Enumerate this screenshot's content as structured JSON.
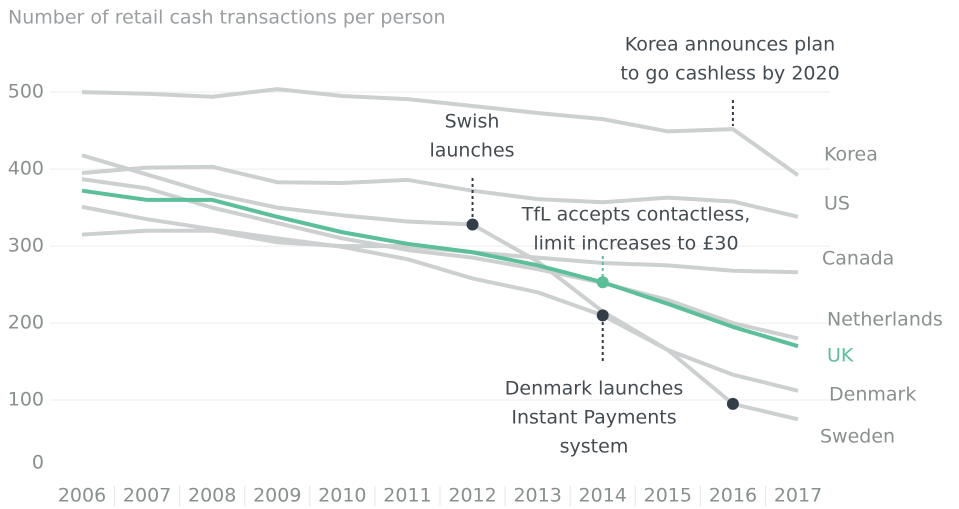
{
  "chart_data": {
    "type": "line",
    "title": "Number of retail cash transactions per person",
    "categories": [
      "2006",
      "2007",
      "2008",
      "2009",
      "2010",
      "2011",
      "2012",
      "2013",
      "2014",
      "2015",
      "2016",
      "2017"
    ],
    "ylim": [
      0,
      560
    ],
    "yticks": [
      0,
      100,
      200,
      300,
      400,
      500
    ],
    "grid": true,
    "series": [
      {
        "name": "Korea",
        "color": "#cdd0d0",
        "values": [
          500,
          498,
          494,
          504,
          495,
          491,
          482,
          473,
          465,
          449,
          452,
          392
        ]
      },
      {
        "name": "US",
        "color": "#cdd0d0",
        "values": [
          395,
          402,
          403,
          383,
          382,
          386,
          372,
          361,
          357,
          363,
          358,
          338
        ]
      },
      {
        "name": "Canada",
        "color": "#cdd0d0",
        "values": [
          315,
          320,
          320,
          305,
          300,
          300,
          292,
          285,
          278,
          275,
          268,
          266
        ]
      },
      {
        "name": "Netherlands",
        "color": "#cdd0d0",
        "values": [
          387,
          375,
          350,
          330,
          310,
          295,
          285,
          270,
          252,
          230,
          200,
          180
        ]
      },
      {
        "name": "UK",
        "color": "#5bbf9a",
        "values": [
          372,
          360,
          360,
          338,
          318,
          303,
          292,
          275,
          253,
          225,
          195,
          170
        ]
      },
      {
        "name": "Denmark",
        "color": "#cdd0d0",
        "values": [
          351,
          335,
          322,
          310,
          299,
          283,
          258,
          240,
          210,
          165,
          133,
          112
        ]
      },
      {
        "name": "Sweden",
        "color": "#cdd0d0",
        "values": [
          418,
          393,
          368,
          350,
          340,
          332,
          328,
          280,
          215,
          165,
          95,
          75
        ]
      }
    ],
    "annotations": [
      {
        "lines": [
          "Korea announces plan",
          "to go cashless by 2020"
        ]
      },
      {
        "lines": [
          "Swish",
          "launches"
        ]
      },
      {
        "lines": [
          "TfL accepts contactless,",
          "limit increases to £30"
        ]
      },
      {
        "lines": [
          "Denmark launches",
          "Instant Payments",
          "system"
        ]
      }
    ]
  }
}
